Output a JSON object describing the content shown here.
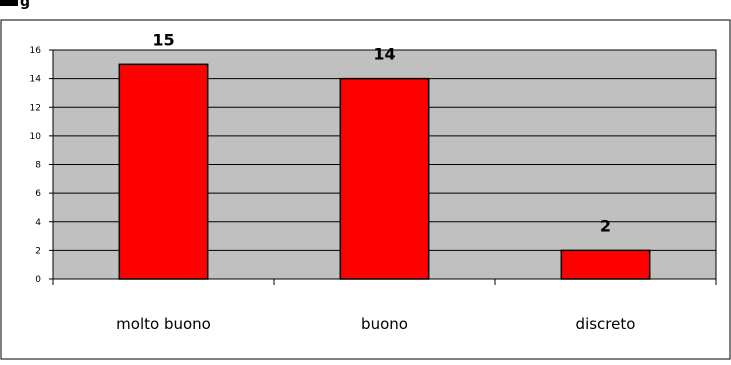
{
  "colors": {
    "plot_background": "#c0c0c0",
    "bar_fill": "#ff0000",
    "bar_stroke": "#000000",
    "gridline": "#000000",
    "frame": "#000000"
  },
  "chart_data": {
    "type": "bar",
    "categories": [
      "molto buono",
      "buono",
      "discreto"
    ],
    "values": [
      15,
      14,
      2
    ],
    "title": "",
    "xlabel": "",
    "ylabel": "",
    "ylim": [
      0,
      16
    ],
    "yticks": [
      0,
      2,
      4,
      6,
      8,
      10,
      12,
      14,
      16
    ],
    "ytick_labels": [
      "0",
      "2",
      "4",
      "6",
      "8",
      "10",
      "12",
      "14",
      "16"
    ],
    "data_labels": [
      "15",
      "14",
      "2"
    ],
    "grid": true,
    "legend": "none"
  }
}
